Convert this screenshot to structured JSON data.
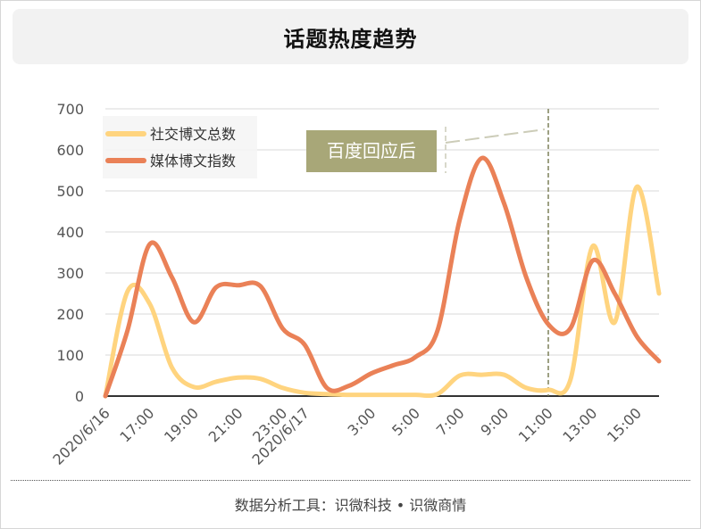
{
  "title": "话题热度趋势",
  "footer": "数据分析工具：识微科技 • 识微商情",
  "colors": {
    "social": "#ffd47f",
    "media": "#ea8157",
    "annotation_bg": "#a8a778",
    "vline": "#7d805a"
  },
  "chart_data": {
    "type": "line",
    "smooth": true,
    "ylim": [
      0,
      700
    ],
    "yticks": [
      0,
      100,
      200,
      300,
      400,
      500,
      600,
      700
    ],
    "grid": true,
    "legend_position": "top-left",
    "x": [
      "2020/6/16 15:00",
      "16:00",
      "17:00",
      "18:00",
      "19:00",
      "20:00",
      "21:00",
      "22:00",
      "23:00",
      "2020/6/17 00:00",
      "01:00",
      "02:00",
      "03:00",
      "04:00",
      "05:00",
      "06:00",
      "07:00",
      "08:00",
      "09:00",
      "10:00",
      "11:00",
      "12:00",
      "13:00",
      "14:00",
      "15:00",
      "16:00"
    ],
    "xtick_labels": [
      {
        "index": 0,
        "label": "2020/6/16"
      },
      {
        "index": 2,
        "label": "17:00"
      },
      {
        "index": 4,
        "label": "19:00"
      },
      {
        "index": 6,
        "label": "21:00"
      },
      {
        "index": 8,
        "label": "23:00"
      },
      {
        "index": 9,
        "label": "2020/6/17"
      },
      {
        "index": 12,
        "label": "3:00"
      },
      {
        "index": 14,
        "label": "5:00"
      },
      {
        "index": 16,
        "label": "7:00"
      },
      {
        "index": 18,
        "label": "9:00"
      },
      {
        "index": 20,
        "label": "11:00"
      },
      {
        "index": 22,
        "label": "13:00"
      },
      {
        "index": 24,
        "label": "15:00"
      }
    ],
    "series": [
      {
        "name": "社交博文总数",
        "color": "#ffd47f",
        "values": [
          0,
          255,
          225,
          70,
          22,
          35,
          45,
          42,
          20,
          8,
          5,
          3,
          3,
          3,
          3,
          5,
          50,
          52,
          52,
          20,
          15,
          40,
          365,
          180,
          510,
          250
        ]
      },
      {
        "name": "媒体博文指数",
        "color": "#ea8157",
        "values": [
          0,
          160,
          370,
          290,
          180,
          265,
          270,
          268,
          165,
          125,
          20,
          25,
          55,
          75,
          95,
          160,
          430,
          580,
          470,
          290,
          175,
          165,
          330,
          250,
          145,
          85
        ]
      }
    ],
    "annotation": {
      "text": "百度回应后",
      "at_index": 20
    }
  }
}
